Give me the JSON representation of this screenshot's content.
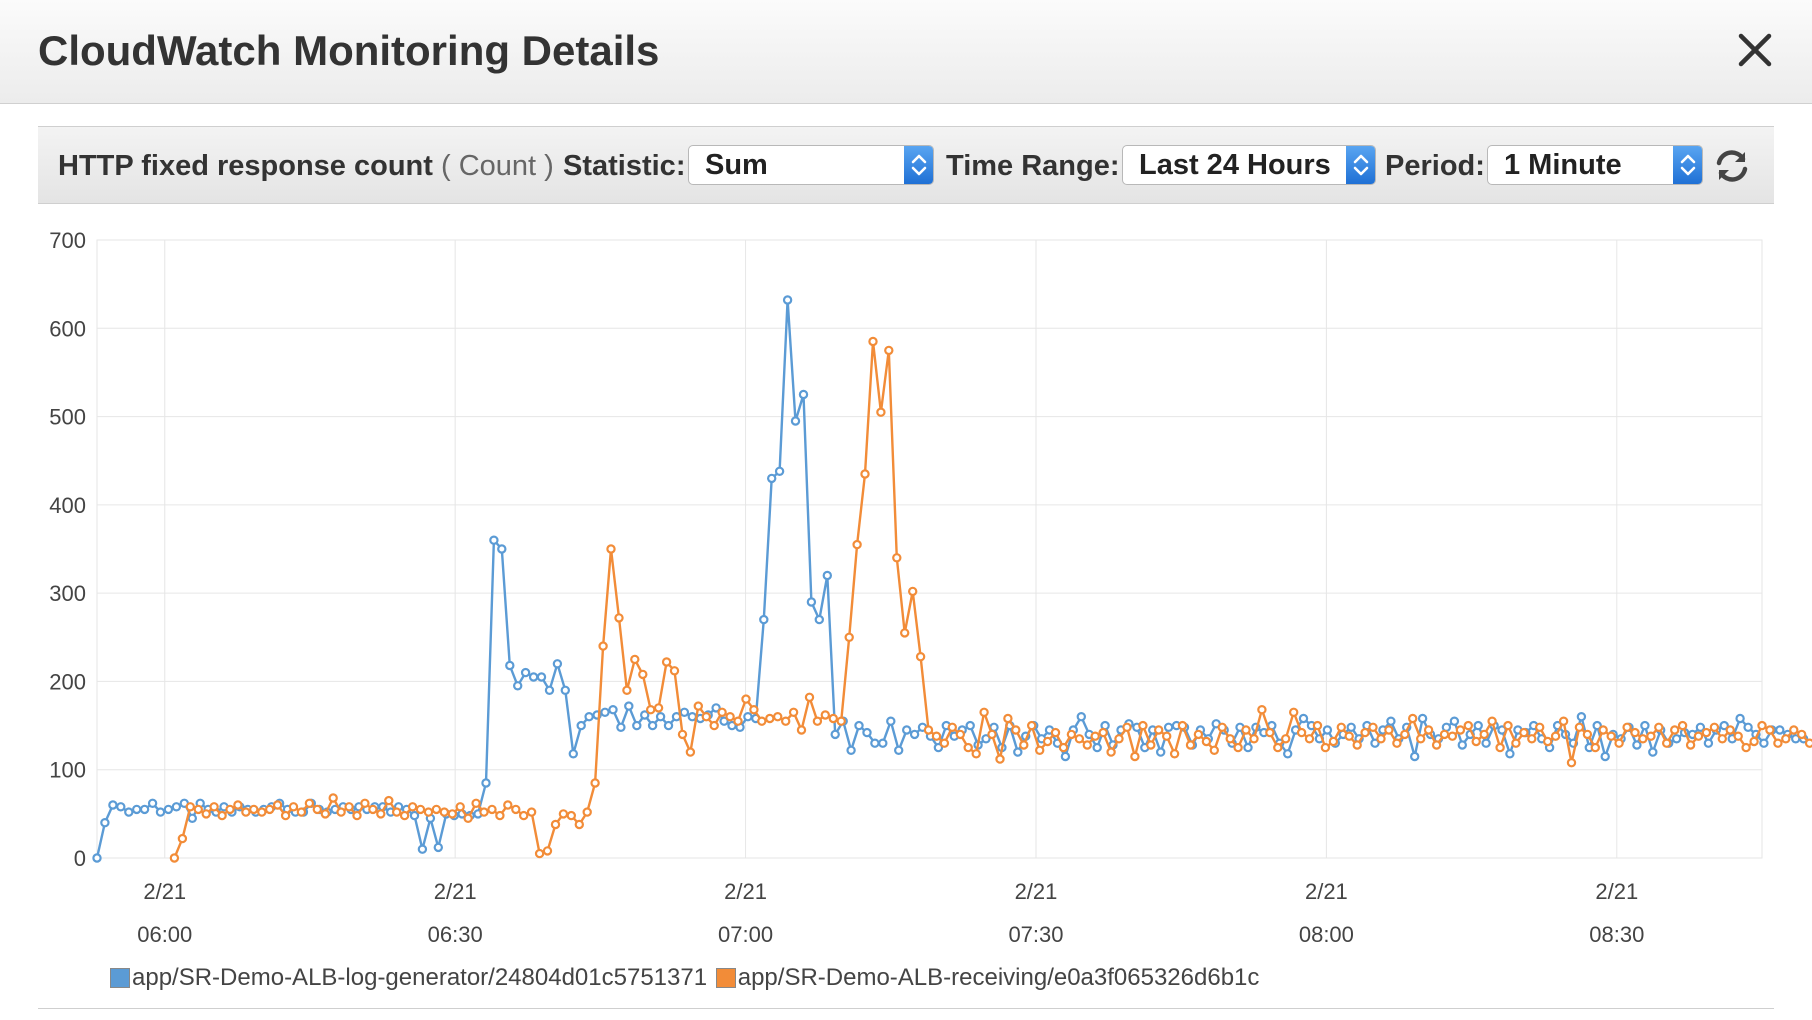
{
  "dialog": {
    "title": "CloudWatch Monitoring Details",
    "close_icon": "close-icon"
  },
  "toolbar": {
    "metric_name": "HTTP fixed response count",
    "metric_unit": "( Count )",
    "statistic_label": "Statistic:",
    "statistic_value": "Sum",
    "time_range_label": "Time Range:",
    "time_range_value": "Last 24 Hours",
    "period_label": "Period:",
    "period_value": "1 Minute",
    "refresh_icon": "refresh-icon",
    "select_accent": "#2a7de1"
  },
  "chart_data": {
    "type": "line",
    "y_ticks": [
      "700",
      "600",
      "500",
      "400",
      "300",
      "200",
      "100",
      "0"
    ],
    "ylim": [
      0,
      700
    ],
    "x_ticks": [
      {
        "date": "2/21",
        "time": "06:00"
      },
      {
        "date": "2/21",
        "time": "06:30"
      },
      {
        "date": "2/21",
        "time": "07:00"
      },
      {
        "date": "2/21",
        "time": "07:30"
      },
      {
        "date": "2/21",
        "time": "08:00"
      },
      {
        "date": "2/21",
        "time": "08:30"
      }
    ],
    "x_range": [
      "05:53",
      "08:45"
    ],
    "grid": true,
    "legend_position": "bottom-left",
    "series": [
      {
        "name": "app/SR-Demo-ALB-log-generator/24804d01c5751371",
        "color": "#5b9bd5",
        "start": "05:53",
        "values": [
          0,
          40,
          60,
          58,
          52,
          55,
          55,
          62,
          52,
          55,
          58,
          62,
          45,
          62,
          55,
          52,
          58,
          52,
          58,
          55,
          52,
          55,
          58,
          62,
          55,
          52,
          52,
          62,
          55,
          52,
          55,
          58,
          55,
          58,
          55,
          58,
          58,
          52,
          58,
          55,
          48,
          10,
          45,
          12,
          50,
          48,
          50,
          48,
          50,
          85,
          360,
          350,
          218,
          195,
          210,
          205,
          205,
          190,
          220,
          190,
          118,
          150,
          160,
          162,
          165,
          168,
          148,
          172,
          150,
          162,
          150,
          160,
          150,
          160,
          165,
          160,
          158,
          162,
          170,
          155,
          150,
          148,
          160,
          158,
          270,
          430,
          438,
          632,
          495,
          525,
          290,
          270,
          320,
          140,
          155,
          122,
          150,
          142,
          130,
          130,
          155,
          122,
          145,
          140,
          148,
          138,
          125,
          150,
          138,
          145,
          150,
          128,
          135,
          148,
          125,
          150,
          120,
          138,
          150,
          135,
          145,
          130,
          115,
          145,
          160,
          140,
          125,
          150,
          128,
          145,
          152,
          148,
          125,
          145,
          120,
          148,
          150,
          148,
          128,
          145,
          135,
          152,
          145,
          130,
          148,
          125,
          148,
          142,
          150,
          130,
          118,
          145,
          158,
          150,
          135,
          145,
          130,
          140,
          148,
          135,
          150,
          130,
          145,
          155,
          135,
          148,
          115,
          158,
          140,
          135,
          148,
          155,
          128,
          140,
          150,
          130,
          150,
          145,
          118,
          145,
          142,
          150,
          135,
          125,
          150,
          140,
          130,
          160,
          125,
          150,
          115,
          140,
          135,
          148,
          128,
          150,
          120,
          145,
          130,
          135,
          142,
          140,
          148,
          130,
          145,
          150,
          135,
          158,
          148,
          140,
          130,
          145,
          145,
          140,
          135,
          135
        ]
      },
      {
        "name": "app/SR-Demo-ALB-receiving/e0a3f065326d6b1c",
        "color": "#f28c38",
        "start": "06:01",
        "values": [
          0,
          22,
          58,
          55,
          50,
          58,
          48,
          55,
          60,
          52,
          55,
          52,
          55,
          60,
          48,
          58,
          52,
          62,
          55,
          50,
          68,
          52,
          58,
          48,
          62,
          55,
          50,
          65,
          52,
          48,
          58,
          55,
          52,
          55,
          52,
          50,
          58,
          45,
          62,
          52,
          55,
          48,
          60,
          55,
          48,
          52,
          5,
          8,
          38,
          50,
          48,
          38,
          52,
          85,
          240,
          350,
          272,
          190,
          225,
          208,
          168,
          170,
          222,
          212,
          140,
          120,
          172,
          160,
          150,
          165,
          160,
          155,
          180,
          168,
          155,
          158,
          160,
          155,
          165,
          145,
          182,
          155,
          162,
          158,
          155,
          250,
          355,
          435,
          585,
          505,
          575,
          340,
          255,
          302,
          228,
          145,
          138,
          130,
          148,
          140,
          125,
          118,
          165,
          140,
          112,
          158,
          145,
          128,
          150,
          122,
          132,
          142,
          125,
          140,
          135,
          128,
          138,
          142,
          120,
          135,
          148,
          115,
          150,
          128,
          145,
          138,
          118,
          150,
          128,
          140,
          132,
          122,
          148,
          135,
          125,
          145,
          135,
          168,
          142,
          125,
          135,
          165,
          142,
          135,
          150,
          125,
          132,
          148,
          138,
          128,
          142,
          148,
          135,
          145,
          130,
          140,
          158,
          135,
          145,
          128,
          140,
          138,
          145,
          150,
          132,
          140,
          155,
          125,
          150,
          130,
          142,
          135,
          148,
          132,
          138,
          155,
          108,
          148,
          140,
          125,
          145,
          138,
          130,
          148,
          142,
          135,
          138,
          148,
          130,
          145,
          150,
          128,
          138,
          142,
          148,
          135,
          145,
          138,
          125,
          132,
          150,
          145,
          130,
          135,
          145,
          140,
          130,
          128
        ]
      }
    ]
  }
}
